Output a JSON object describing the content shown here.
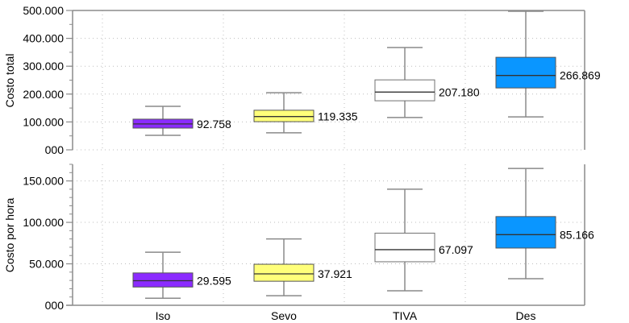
{
  "chart_data": [
    {
      "type": "boxplot",
      "panel": "top",
      "ylabel": "Costo total",
      "ylim": [
        0,
        500000
      ],
      "yticks": [
        0,
        100000,
        200000,
        300000,
        400000,
        500000
      ],
      "ytick_labels": [
        "000",
        "100.000",
        "200.000",
        "300.000",
        "400.000",
        "500.000"
      ],
      "yminor_step": 50000,
      "grid": true,
      "categories": [
        "Iso",
        "Sevo",
        "TIVA",
        "Des"
      ],
      "colors": [
        "#8B2BFF",
        "#FFFF7A",
        "#FFFFFF",
        "#0A96FF"
      ],
      "boxes": [
        {
          "name": "Iso",
          "whisker_low": 52000,
          "q1": 78000,
          "median": 92758,
          "q3": 110000,
          "whisker_high": 156000,
          "median_label": "92.758"
        },
        {
          "name": "Sevo",
          "whisker_low": 61000,
          "q1": 101000,
          "median": 119335,
          "q3": 142000,
          "whisker_high": 205000,
          "median_label": "119.335"
        },
        {
          "name": "TIVA",
          "whisker_low": 116000,
          "q1": 176000,
          "median": 207180,
          "q3": 251000,
          "whisker_high": 367000,
          "median_label": "207.180"
        },
        {
          "name": "Des",
          "whisker_low": 118000,
          "q1": 222000,
          "median": 266869,
          "q3": 332000,
          "whisker_high": 497000,
          "median_label": "266.869"
        }
      ]
    },
    {
      "type": "boxplot",
      "panel": "bottom",
      "ylabel": "Costo por hora",
      "ylim": [
        0,
        170000
      ],
      "yticks": [
        0,
        50000,
        100000,
        150000
      ],
      "ytick_labels": [
        "000",
        "50.000",
        "100.000",
        "150.000"
      ],
      "yminor_step": 10000,
      "grid": true,
      "categories": [
        "Iso",
        "Sevo",
        "TIVA",
        "Des"
      ],
      "colors": [
        "#8B2BFF",
        "#FFFF7A",
        "#FFFFFF",
        "#0A96FF"
      ],
      "boxes": [
        {
          "name": "Iso",
          "whisker_low": 8500,
          "q1": 22000,
          "median": 29595,
          "q3": 39000,
          "whisker_high": 64000,
          "median_label": "29.595"
        },
        {
          "name": "Sevo",
          "whisker_low": 11500,
          "q1": 29000,
          "median": 37921,
          "q3": 49500,
          "whisker_high": 80000,
          "median_label": "37.921"
        },
        {
          "name": "TIVA",
          "whisker_low": 17500,
          "q1": 52500,
          "median": 67097,
          "q3": 87000,
          "whisker_high": 140000,
          "median_label": "67.097"
        },
        {
          "name": "Des",
          "whisker_low": 32000,
          "q1": 69000,
          "median": 85166,
          "q3": 107000,
          "whisker_high": 165000,
          "median_label": "85.166"
        }
      ]
    }
  ],
  "x_axis": {
    "categories": [
      "Iso",
      "Sevo",
      "TIVA",
      "Des"
    ]
  }
}
